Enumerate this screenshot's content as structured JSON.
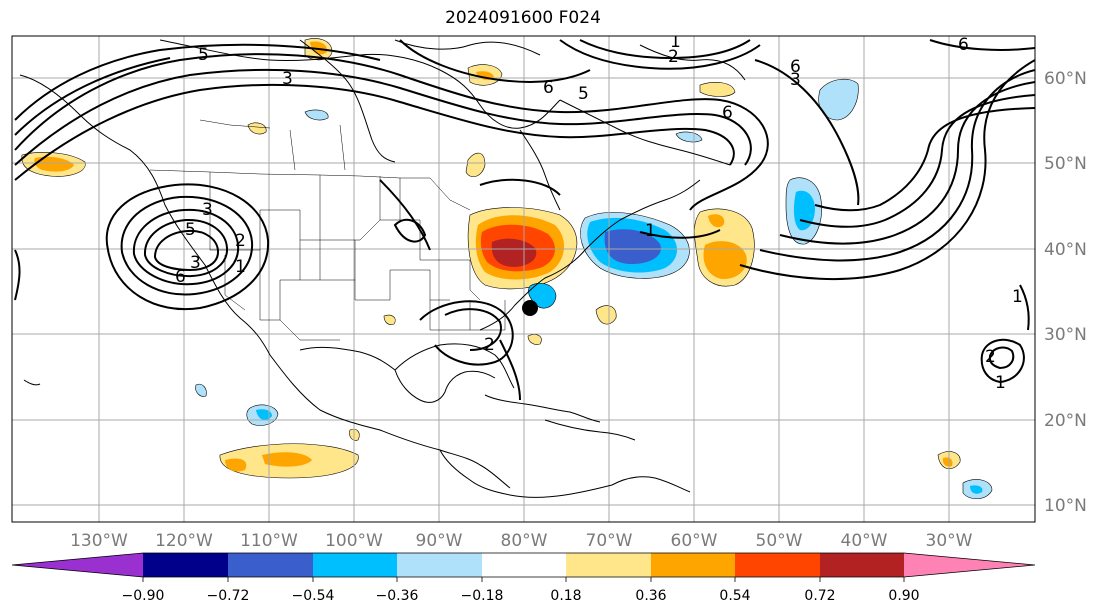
{
  "title": "2024091600 F024",
  "map": {
    "lon_labels": [
      "130°W",
      "120°W",
      "110°W",
      "100°W",
      "90°W",
      "80°W",
      "70°W",
      "60°W",
      "50°W",
      "40°W",
      "30°W"
    ],
    "lat_labels": [
      "60°N",
      "50°N",
      "40°N",
      "30°N",
      "20°N",
      "10°N"
    ],
    "lon_range": [
      -137,
      -17
    ],
    "lat_range": [
      8,
      65
    ],
    "grid": true,
    "contour_labels": [
      "5",
      "3",
      "2",
      "1",
      "6",
      "5",
      "3",
      "6",
      "6",
      "5",
      "3",
      "2",
      "1",
      "6",
      "3",
      "6",
      "1",
      "1",
      "2",
      "1",
      "2"
    ]
  },
  "colorbar": {
    "ticks": [
      "−0.90",
      "−0.72",
      "−0.54",
      "−0.36",
      "−0.18",
      "0.18",
      "0.36",
      "0.54",
      "0.72",
      "0.90"
    ],
    "colors": [
      "#9b30d0",
      "#00008b",
      "#3a5fcd",
      "#00bfff",
      "#afe1fa",
      "#ffffff",
      "#ffe68a",
      "#ffa500",
      "#ff4500",
      "#b22222",
      "#ff82b4"
    ]
  }
}
